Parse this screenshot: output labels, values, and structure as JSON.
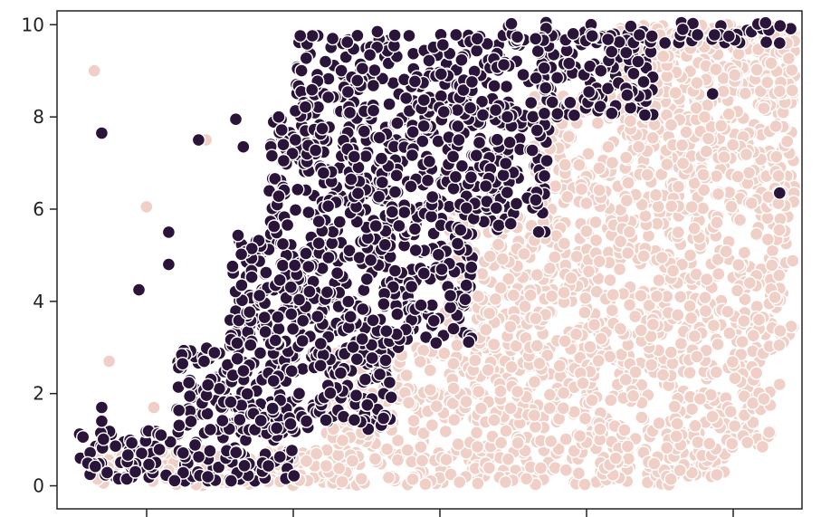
{
  "chart_data": {
    "type": "scatter",
    "title": "",
    "xlabel": "",
    "ylabel": "",
    "ylim": [
      -0.5,
      10.3
    ],
    "xlim": [
      0,
      1
    ],
    "y_ticks": [
      {
        "value": 0,
        "label": "0"
      },
      {
        "value": 2,
        "label": "2"
      },
      {
        "value": 4,
        "label": "4"
      },
      {
        "value": 6,
        "label": "6"
      },
      {
        "value": 8,
        "label": "8"
      },
      {
        "value": 10,
        "label": "10"
      }
    ],
    "x_tick_count": 5,
    "x_tick_labels_visible": false,
    "grid": false,
    "legend": "none",
    "series": [
      {
        "color": "#efcfc6",
        "description_points": [
          [
            0.05,
            9.0
          ],
          [
            0.07,
            2.7
          ],
          [
            0.12,
            6.05
          ],
          [
            0.2,
            7.5
          ],
          [
            0.13,
            1.7
          ],
          [
            0.9,
            10.0
          ],
          [
            0.95,
            9.9
          ],
          [
            0.98,
            9.6
          ],
          [
            0.85,
            5.0
          ],
          [
            0.8,
            3.5
          ],
          [
            0.93,
            4.4
          ],
          [
            0.97,
            2.2
          ],
          [
            0.88,
            1.5
          ],
          [
            0.75,
            0.6
          ]
        ],
        "regions": [
          {
            "ymin": 0.0,
            "ymax": 0.8,
            "xmin": 0.05,
            "xmax": 0.9,
            "n": 380
          },
          {
            "ymin": 0.8,
            "ymax": 3.0,
            "xmin": 0.36,
            "xmax": 0.96,
            "n": 560
          },
          {
            "ymin": 3.0,
            "ymax": 6.0,
            "xmin": 0.52,
            "xmax": 0.99,
            "n": 560
          },
          {
            "ymin": 6.0,
            "ymax": 8.5,
            "xmin": 0.64,
            "xmax": 0.99,
            "n": 400
          },
          {
            "ymin": 8.5,
            "ymax": 10.0,
            "xmin": 0.75,
            "xmax": 0.99,
            "n": 260
          }
        ]
      },
      {
        "color": "#2b1439",
        "description_points": [
          [
            0.06,
            7.65
          ],
          [
            0.19,
            7.5
          ],
          [
            0.24,
            7.95
          ],
          [
            0.25,
            7.35
          ],
          [
            0.15,
            5.5
          ],
          [
            0.15,
            4.8
          ],
          [
            0.11,
            4.25
          ],
          [
            0.06,
            1.7
          ],
          [
            0.06,
            1.4
          ],
          [
            0.37,
            9.7
          ],
          [
            0.43,
            9.85
          ],
          [
            0.88,
            8.5
          ],
          [
            0.84,
            9.9
          ],
          [
            0.97,
            9.6
          ],
          [
            0.97,
            6.35
          ],
          [
            0.78,
            9.2
          ],
          [
            0.73,
            9.0
          ]
        ],
        "regions": [
          {
            "ymin": 0.1,
            "ymax": 1.2,
            "xmin": 0.03,
            "xmax": 0.32,
            "n": 140
          },
          {
            "ymin": 1.2,
            "ymax": 3.0,
            "xmin": 0.16,
            "xmax": 0.45,
            "n": 260
          },
          {
            "ymin": 3.0,
            "ymax": 5.5,
            "xmin": 0.23,
            "xmax": 0.56,
            "n": 380
          },
          {
            "ymin": 5.5,
            "ymax": 8.0,
            "xmin": 0.28,
            "xmax": 0.66,
            "n": 420
          },
          {
            "ymin": 8.0,
            "ymax": 9.8,
            "xmin": 0.32,
            "xmax": 0.8,
            "n": 340
          },
          {
            "ymin": 9.6,
            "ymax": 10.05,
            "xmin": 0.6,
            "xmax": 0.99,
            "n": 60
          }
        ]
      }
    ]
  }
}
